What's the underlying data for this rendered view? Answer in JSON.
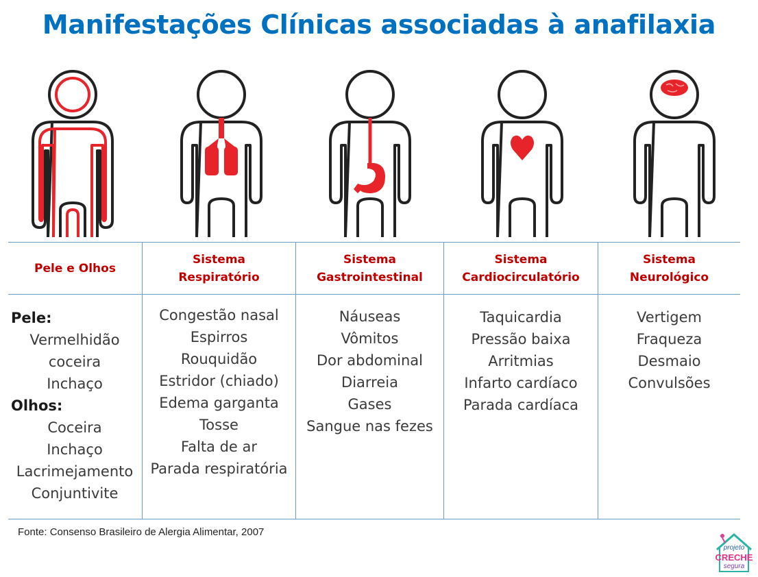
{
  "title": "Manifestações Clínicas associadas à anafilaxia",
  "colors": {
    "title": "#0070c0",
    "header_text": "#c00000",
    "body_text": "#3a3a3a",
    "organ": "#e8242b",
    "outline": "#222222",
    "grid": "#6c9cc4"
  },
  "columns": [
    {
      "header": [
        "Pele e Olhos"
      ],
      "icon": "skin-eyes-icon",
      "items": [
        {
          "text": "Pele:",
          "sub": true
        },
        {
          "text": "Vermelhidão"
        },
        {
          "text": "coceira"
        },
        {
          "text": "Inchaço"
        },
        {
          "text": "Olhos:",
          "sub": true
        },
        {
          "text": "Coceira"
        },
        {
          "text": "Inchaço"
        },
        {
          "text": "Lacrimejamento"
        },
        {
          "text": "Conjuntivite"
        }
      ]
    },
    {
      "header": [
        "Sistema",
        "Respiratório"
      ],
      "icon": "lungs-icon",
      "items": [
        {
          "text": "Congestão nasal"
        },
        {
          "text": "Espirros"
        },
        {
          "text": "Rouquidão"
        },
        {
          "text": "Estridor (chiado)"
        },
        {
          "text": "Edema garganta"
        },
        {
          "text": "Tosse"
        },
        {
          "text": "Falta de ar"
        },
        {
          "text": "Parada respiratória"
        }
      ]
    },
    {
      "header": [
        "Sistema",
        "Gastrointestinal"
      ],
      "icon": "stomach-icon",
      "items": [
        {
          "text": "Náuseas"
        },
        {
          "text": "Vômitos"
        },
        {
          "text": "Dor abdominal"
        },
        {
          "text": "Diarreia"
        },
        {
          "text": "Gases"
        },
        {
          "text": "Sangue nas fezes"
        }
      ]
    },
    {
      "header": [
        "Sistema",
        "Cardiocirculatório"
      ],
      "icon": "heart-icon",
      "items": [
        {
          "text": "Taquicardia"
        },
        {
          "text": "Pressão baixa"
        },
        {
          "text": "Arritmias"
        },
        {
          "text": "Infarto cardíaco"
        },
        {
          "text": "Parada cardíaca"
        }
      ]
    },
    {
      "header": [
        "Sistema",
        "Neurológico"
      ],
      "icon": "brain-icon",
      "items": [
        {
          "text": "Vertigem"
        },
        {
          "text": "Fraqueza"
        },
        {
          "text": "Desmaio"
        },
        {
          "text": "Convulsões"
        }
      ]
    }
  ],
  "source": "Fonte: Consenso Brasileiro de Alergia Alimentar, 2007",
  "logo": {
    "line1": "projeto",
    "line2": "CRECHE",
    "line3": "segura"
  }
}
